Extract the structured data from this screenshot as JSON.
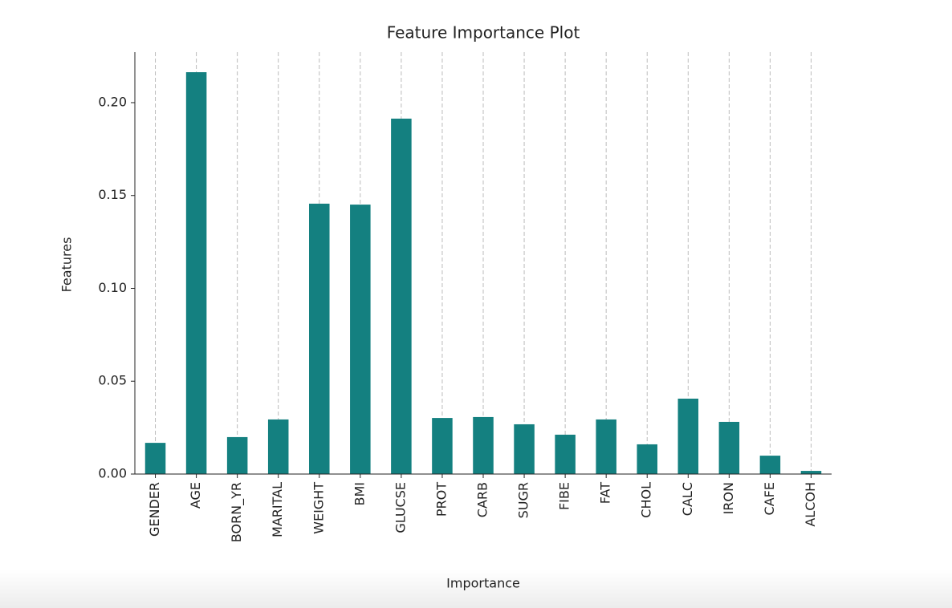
{
  "chart_data": {
    "type": "bar",
    "title": "Feature Importance Plot",
    "x_label": "Importance",
    "y_label": "Features",
    "categories": [
      "GENDER",
      "AGE",
      "BORN_YR",
      "MARITAL",
      "WEIGHT",
      "BMI",
      "GLUCSE",
      "PROT",
      "CARB",
      "SUGR",
      "FIBE",
      "FAT",
      "CHOL",
      "CALC",
      "IRON",
      "CAFE",
      "ALCOH"
    ],
    "values": [
      0.0168,
      0.2164,
      0.0199,
      0.0294,
      0.1456,
      0.1451,
      0.1914,
      0.0302,
      0.0307,
      0.0268,
      0.0212,
      0.0294,
      0.016,
      0.0406,
      0.0281,
      0.0099,
      0.0017
    ],
    "color": "#148080",
    "ylim": [
      0,
      0.2272
    ],
    "yticks": [
      {
        "value": 0,
        "label": "0.00"
      },
      {
        "value": 0.05,
        "label": "0.05"
      },
      {
        "value": 0.1,
        "label": "0.10"
      },
      {
        "value": 0.15,
        "label": "0.15"
      },
      {
        "value": 0.2,
        "label": "0.20"
      }
    ],
    "grid": "x"
  }
}
